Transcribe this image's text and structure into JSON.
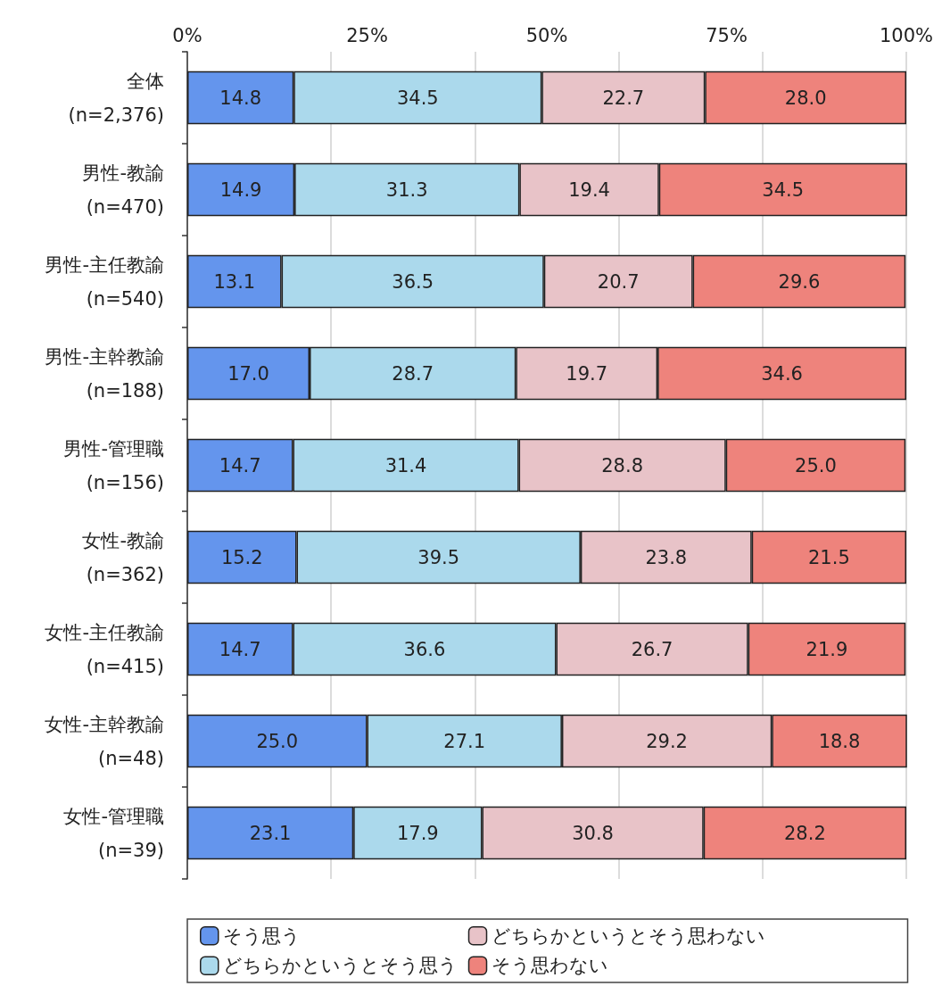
{
  "chart_data": {
    "type": "bar",
    "orientation": "horizontal",
    "stacked": true,
    "categories": [
      "全体\n(n=2,376)",
      "男性-教諭\n(n=470)",
      "男性-主任教諭\n(n=540)",
      "男性-主幹教諭\n(n=188)",
      "男性-管理職\n(n=156)",
      "女性-教諭\n(n=362)",
      "女性-主任教諭\n(n=415)",
      "女性-主幹教諭\n(n=48)",
      "女性-管理職\n(n=39)"
    ],
    "series": [
      {
        "name": "そう思う",
        "color": "#6495ed",
        "values": [
          14.8,
          14.9,
          13.1,
          17.0,
          14.7,
          15.2,
          14.7,
          25.0,
          23.1
        ],
        "value_labels": [
          "14.8",
          "14.9",
          "13.1",
          "17.0",
          "14.7",
          "15.2",
          "14.7",
          "25.0",
          "23.1"
        ]
      },
      {
        "name": "どちらかというとそう思う",
        "color": "#abd9ec",
        "values": [
          34.5,
          31.3,
          36.5,
          28.7,
          31.4,
          39.5,
          36.6,
          27.1,
          17.9
        ],
        "value_labels": [
          "34.5",
          "31.3",
          "36.5",
          "28.7",
          "31.4",
          "39.5",
          "36.6",
          "27.1",
          "17.9"
        ]
      },
      {
        "name": "どちらかというとそう思わない",
        "color": "#e8c3c8",
        "values": [
          22.7,
          19.4,
          20.7,
          19.7,
          28.8,
          23.8,
          26.7,
          29.2,
          30.8
        ],
        "value_labels": [
          "22.7",
          "19.4",
          "20.7",
          "19.7",
          "28.8",
          "23.8",
          "26.7",
          "29.2",
          "30.8"
        ]
      },
      {
        "name": "そう思わない",
        "color": "#ee837c",
        "values": [
          28.0,
          34.5,
          29.6,
          34.6,
          25.0,
          21.5,
          21.9,
          18.8,
          28.2
        ],
        "value_labels": [
          "28.0",
          "34.5",
          "29.6",
          "34.6",
          "25.0",
          "21.5",
          "21.9",
          "18.8",
          "28.2"
        ]
      }
    ],
    "xlim": [
      0,
      100
    ],
    "xticks": [
      {
        "value": 0,
        "label": "0%"
      },
      {
        "value": 25,
        "label": "25%"
      },
      {
        "value": 50,
        "label": "50%"
      },
      {
        "value": 75,
        "label": "75%"
      },
      {
        "value": 100,
        "label": "100%"
      }
    ],
    "grid": "x",
    "legend": "bottom"
  }
}
